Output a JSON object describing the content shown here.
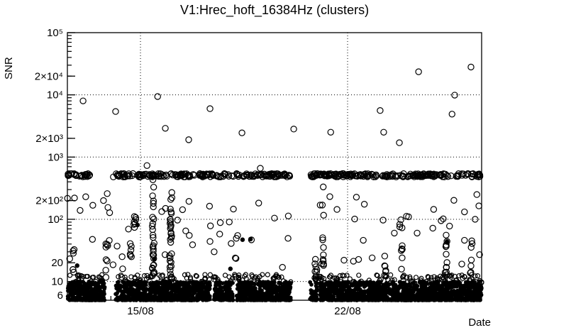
{
  "window": {
    "background": "#ffffff",
    "foreground": "#000000"
  },
  "chart_data": {
    "type": "scatter",
    "title": "V1:Hrec_hoft_16384Hz (clusters)",
    "xlabel": "Date",
    "ylabel": "SNR",
    "x_unit": "days",
    "x_span_days": 14,
    "x_ticks": [
      {
        "day": 2.47,
        "label": "15/08"
      },
      {
        "day": 9.47,
        "label": "22/08"
      }
    ],
    "x_minor_start": 0.47,
    "x_minor_step": 1,
    "y_scale": "log",
    "ylim": [
      5,
      100000
    ],
    "y_labeled_ticks": [
      {
        "v": 6,
        "label": "6",
        "len": 6
      },
      {
        "v": 10,
        "label": "10",
        "len": 11
      },
      {
        "v": 20,
        "label": "20",
        "len": 11
      },
      {
        "v": 100,
        "label": "10²",
        "len": 11
      },
      {
        "v": 200,
        "label": "2×10²",
        "len": 11
      },
      {
        "v": 1000,
        "label": "10³",
        "len": 11
      },
      {
        "v": 2000,
        "label": "2×10³",
        "len": 11
      },
      {
        "v": 10000,
        "label": "10⁴",
        "len": 11
      },
      {
        "v": 20000,
        "label": "2×10⁴",
        "len": 11
      },
      {
        "v": 100000,
        "label": "10⁵",
        "len": 11
      }
    ],
    "y_minor_ticks": [
      6,
      7,
      8,
      9,
      20,
      30,
      40,
      50,
      60,
      70,
      80,
      90,
      200,
      300,
      400,
      500,
      600,
      700,
      800,
      900,
      2000,
      3000,
      4000,
      5000,
      6000,
      7000,
      8000,
      9000,
      20000,
      30000,
      40000,
      50000,
      60000,
      70000,
      80000,
      90000
    ],
    "grid": {
      "h_lines_at": [
        10,
        100,
        1000,
        10000
      ],
      "v_lines_at_days": [
        2.47,
        9.47
      ],
      "style": "dotted"
    },
    "marker": {
      "open_radius": 4.1,
      "filled_radius": 3.2,
      "mass_radius": 2.8,
      "fringe_radius": 3.0,
      "stroke_width": 1.2
    },
    "seed": 42,
    "band": {
      "snr": 510,
      "jitter_log": 0.055,
      "n": 460,
      "gaps_days": [
        [
          0.77,
          1.4
        ],
        [
          7.55,
          8.2
        ]
      ]
    },
    "bottom_mass": {
      "snr_min": 5,
      "snr_max": 10,
      "n": 3200,
      "gaps_days": [
        [
          1.27,
          1.63
        ],
        [
          7.55,
          8.2
        ]
      ],
      "notches_days": [
        [
          4.84,
          4.96
        ],
        [
          5.6,
          5.72
        ],
        [
          8.44,
          8.54
        ]
      ]
    },
    "fringe": {
      "snr_min": 9,
      "snr_max": 13,
      "n": 280
    },
    "random_scatter": {
      "n": 70,
      "snr_min": 11,
      "snr_max": 260
    },
    "streaks": [
      [
        2.9,
        7,
        450,
        34
      ],
      [
        3.5,
        8,
        330,
        30
      ],
      [
        2.28,
        55,
        140,
        7
      ],
      [
        2.13,
        22,
        48,
        6
      ],
      [
        1.33,
        11,
        45,
        8
      ],
      [
        0.19,
        14,
        38,
        5
      ],
      [
        8.63,
        15,
        450,
        12
      ],
      [
        12.8,
        11,
        60,
        12
      ],
      [
        13.65,
        10,
        45,
        8
      ],
      [
        8.4,
        11,
        26,
        8
      ],
      [
        10.75,
        12,
        35,
        6
      ],
      [
        11.3,
        15,
        80,
        7
      ]
    ],
    "outliers": [
      [
        0.53,
        8000
      ],
      [
        1.63,
        5400
      ],
      [
        3.05,
        9400
      ],
      [
        3.31,
        2900
      ],
      [
        4.1,
        1900
      ],
      [
        4.82,
        6000
      ],
      [
        5.9,
        2450
      ],
      [
        7.65,
        2820
      ],
      [
        8.9,
        2510
      ],
      [
        10.57,
        5600
      ],
      [
        10.69,
        2510
      ],
      [
        11.22,
        1700
      ],
      [
        11.87,
        23500
      ],
      [
        13.0,
        4900
      ],
      [
        13.09,
        9900
      ],
      [
        13.64,
        28000
      ],
      [
        2.69,
        730
      ],
      [
        6.52,
        660
      ]
    ],
    "scatter_points": [
      [
        0.24,
        220
      ],
      [
        0.43,
        139
      ],
      [
        0.62,
        230
      ],
      [
        1.22,
        200
      ],
      [
        1.37,
        155
      ],
      [
        1.68,
        37
      ],
      [
        1.85,
        25
      ],
      [
        3.3,
        27
      ],
      [
        3.45,
        26
      ],
      [
        3.72,
        97
      ],
      [
        4.0,
        65
      ],
      [
        4.12,
        55
      ],
      [
        4.82,
        44
      ],
      [
        4.96,
        30
      ],
      [
        9.71,
        101
      ],
      [
        10.0,
        46
      ],
      [
        10.3,
        24
      ],
      [
        10.67,
        97
      ],
      [
        11.05,
        60
      ],
      [
        11.27,
        98
      ],
      [
        11.46,
        112
      ],
      [
        11.82,
        60
      ],
      [
        12.35,
        72
      ],
      [
        12.63,
        95
      ],
      [
        13.42,
        46
      ],
      [
        13.78,
        100
      ],
      [
        13.93,
        27
      ]
    ],
    "filled_points": [
      [
        2.37,
        81
      ],
      [
        5.92,
        47
      ],
      [
        6.19,
        48
      ],
      [
        12.83,
        44
      ],
      [
        5.51,
        16
      ],
      [
        2.93,
        23
      ],
      [
        0.33,
        18
      ]
    ]
  }
}
